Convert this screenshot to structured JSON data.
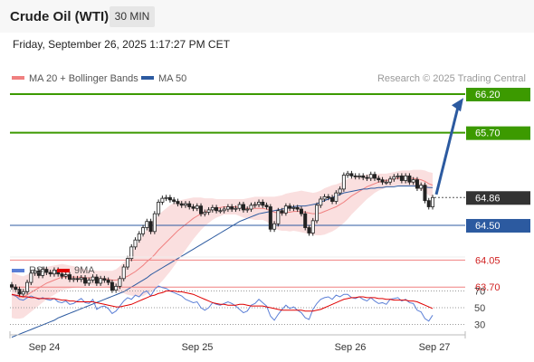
{
  "header": {
    "title": "Crude Oil (WTI)",
    "interval": "30 MIN"
  },
  "datetime": "Friday, September 26, 2025 1:17:27 PM CET",
  "legend": {
    "items": [
      {
        "label": "MA 20 + Bollinger Bands",
        "color": "#f08080"
      },
      {
        "label": "MA 50",
        "color": "#2c5aa0"
      }
    ],
    "credit": "Research © 2025 Trading Central"
  },
  "rsi_legend": {
    "items": [
      {
        "label": "RSI",
        "color": "#5b7fd6"
      },
      {
        "label": "9MA",
        "color": "#e00000"
      }
    ]
  },
  "colors": {
    "resistance": "#3c9a00",
    "support_blue": "#2c5aa0",
    "support_red": "#f08080",
    "current": "#333333",
    "arrow": "#2c5aa0"
  },
  "chart_data": [
    {
      "type": "candlestick",
      "x_labels": [
        "Sep 24",
        "Sep 25",
        "Sep 26",
        "Sep 27"
      ],
      "ylim": [
        63.0,
        66.5
      ],
      "levels": [
        {
          "label": "66.20",
          "value": 66.2,
          "kind": "resistance"
        },
        {
          "label": "65.70",
          "value": 65.7,
          "kind": "resistance"
        },
        {
          "label": "64.86",
          "value": 64.86,
          "kind": "current"
        },
        {
          "label": "64.50",
          "value": 64.5,
          "kind": "pivot"
        },
        {
          "label": "64.05",
          "value": 64.05,
          "kind": "support"
        },
        {
          "label": "63.70",
          "value": 63.7,
          "kind": "support"
        }
      ],
      "close": [
        63.7,
        63.67,
        63.61,
        63.64,
        63.76,
        63.88,
        63.91,
        63.85,
        63.93,
        63.89,
        63.87,
        63.92,
        63.87,
        63.84,
        63.86,
        63.8,
        63.81,
        63.8,
        63.82,
        63.75,
        63.79,
        63.83,
        63.75,
        63.81,
        63.79,
        63.76,
        63.66,
        63.71,
        63.81,
        63.96,
        64.07,
        64.22,
        64.31,
        64.39,
        64.47,
        64.55,
        64.42,
        64.65,
        64.8,
        64.85,
        64.86,
        64.83,
        64.81,
        64.78,
        64.76,
        64.78,
        64.74,
        64.72,
        64.75,
        64.65,
        64.67,
        64.7,
        64.73,
        64.69,
        64.69,
        64.71,
        64.74,
        64.71,
        64.72,
        64.77,
        64.7,
        64.71,
        64.76,
        64.77,
        64.8,
        64.76,
        64.74,
        64.45,
        64.52,
        64.69,
        64.66,
        64.75,
        64.72,
        64.73,
        64.71,
        64.65,
        64.47,
        64.4,
        64.56,
        64.76,
        64.84,
        64.87,
        64.86,
        64.81,
        64.92,
        64.97,
        65.15,
        65.17,
        65.14,
        65.13,
        65.14,
        65.12,
        65.11,
        65.16,
        65.11,
        65.09,
        65.06,
        65.06,
        65.1,
        65.13,
        65.14,
        65.08,
        65.14,
        65.06,
        65.09,
        64.98,
        65.02,
        64.82,
        64.74,
        64.86
      ],
      "ma20": [
        63.6,
        63.58,
        63.57,
        63.57,
        63.6,
        63.63,
        63.66,
        63.69,
        63.72,
        63.75,
        63.77,
        63.79,
        63.81,
        63.83,
        63.83,
        63.83,
        63.83,
        63.83,
        63.83,
        63.82,
        63.82,
        63.82,
        63.81,
        63.81,
        63.81,
        63.8,
        63.79,
        63.79,
        63.8,
        63.82,
        63.84,
        63.87,
        63.9,
        63.94,
        63.98,
        64.03,
        64.07,
        64.12,
        64.18,
        64.23,
        64.28,
        64.33,
        64.38,
        64.43,
        64.47,
        64.51,
        64.55,
        64.59,
        64.62,
        64.65,
        64.67,
        64.69,
        64.71,
        64.72,
        64.73,
        64.74,
        64.74,
        64.74,
        64.74,
        64.73,
        64.72,
        64.72,
        64.72,
        64.72,
        64.72,
        64.72,
        64.71,
        64.69,
        64.67,
        64.66,
        64.66,
        64.67,
        64.67,
        64.68,
        64.68,
        64.68,
        64.67,
        64.66,
        64.65,
        64.65,
        64.66,
        64.68,
        64.7,
        64.72,
        64.74,
        64.77,
        64.8,
        64.84,
        64.88,
        64.91,
        64.94,
        64.97,
        65.0,
        65.02,
        65.04,
        65.06,
        65.07,
        65.08,
        65.09,
        65.1,
        65.11,
        65.11,
        65.11,
        65.11,
        65.11,
        65.1,
        65.09,
        65.07,
        65.04,
        65.02
      ],
      "ma50": [
        63.05,
        63.07,
        63.09,
        63.11,
        63.13,
        63.15,
        63.17,
        63.19,
        63.21,
        63.23,
        63.25,
        63.27,
        63.3,
        63.32,
        63.34,
        63.36,
        63.38,
        63.4,
        63.42,
        63.44,
        63.46,
        63.48,
        63.5,
        63.52,
        63.54,
        63.56,
        63.58,
        63.6,
        63.62,
        63.64,
        63.67,
        63.7,
        63.73,
        63.76,
        63.79,
        63.82,
        63.86,
        63.89,
        63.92,
        63.95,
        63.98,
        64.01,
        64.04,
        64.07,
        64.1,
        64.13,
        64.16,
        64.19,
        64.22,
        64.25,
        64.28,
        64.31,
        64.34,
        64.37,
        64.4,
        64.43,
        64.46,
        64.49,
        64.52,
        64.55,
        64.57,
        64.59,
        64.61,
        64.63,
        64.65,
        64.66,
        64.67,
        64.68,
        64.69,
        64.7,
        64.71,
        64.72,
        64.73,
        64.74,
        64.75,
        64.75,
        64.75,
        64.76,
        64.77,
        64.78,
        64.8,
        64.82,
        64.84,
        64.86,
        64.88,
        64.9,
        64.92,
        64.93,
        64.94,
        64.95,
        64.96,
        64.97,
        64.97,
        64.98,
        64.98,
        64.99,
        64.99,
        65.0,
        65.0,
        65.0,
        65.01,
        65.01,
        65.01,
        65.01,
        65.01,
        65.01,
        65.0,
        65.0,
        64.99,
        64.99
      ],
      "bb_width": [
        0.3,
        0.29,
        0.28,
        0.27,
        0.26,
        0.25,
        0.24,
        0.23,
        0.22,
        0.21,
        0.2,
        0.19,
        0.18,
        0.17,
        0.16,
        0.15,
        0.14,
        0.13,
        0.12,
        0.11,
        0.1,
        0.1,
        0.1,
        0.1,
        0.1,
        0.11,
        0.12,
        0.14,
        0.17,
        0.2,
        0.24,
        0.28,
        0.32,
        0.36,
        0.4,
        0.42,
        0.44,
        0.45,
        0.45,
        0.45,
        0.44,
        0.43,
        0.41,
        0.39,
        0.36,
        0.33,
        0.3,
        0.27,
        0.24,
        0.21,
        0.18,
        0.16,
        0.14,
        0.12,
        0.11,
        0.1,
        0.1,
        0.1,
        0.1,
        0.11,
        0.12,
        0.13,
        0.14,
        0.15,
        0.15,
        0.15,
        0.16,
        0.18,
        0.2,
        0.22,
        0.23,
        0.24,
        0.25,
        0.25,
        0.26,
        0.27,
        0.27,
        0.27,
        0.27,
        0.28,
        0.29,
        0.3,
        0.3,
        0.3,
        0.29,
        0.28,
        0.27,
        0.26,
        0.24,
        0.22,
        0.2,
        0.18,
        0.16,
        0.14,
        0.12,
        0.11,
        0.1,
        0.09,
        0.09,
        0.09,
        0.09,
        0.1,
        0.1,
        0.1,
        0.11,
        0.12,
        0.13,
        0.14,
        0.15,
        0.16
      ]
    },
    {
      "type": "line",
      "name": "RSI",
      "y_ticks": [
        70,
        50,
        30
      ],
      "ylim": [
        20,
        85
      ],
      "rsi": [
        66,
        64,
        60,
        59,
        62,
        64,
        62,
        60,
        62,
        60,
        59,
        61,
        57,
        56,
        58,
        54,
        55,
        58,
        61,
        56,
        55,
        60,
        48,
        51,
        52,
        49,
        43,
        46,
        52,
        58,
        62,
        60,
        65,
        63,
        68,
        70,
        64,
        72,
        76,
        74,
        73,
        70,
        68,
        66,
        64,
        60,
        58,
        56,
        57,
        50,
        47,
        50,
        56,
        54,
        53,
        55,
        57,
        55,
        52,
        48,
        44,
        46,
        53,
        55,
        60,
        56,
        52,
        40,
        35,
        42,
        48,
        53,
        49,
        51,
        47,
        44,
        38,
        36,
        48,
        55,
        60,
        62,
        63,
        60,
        65,
        63,
        66,
        66,
        62,
        61,
        63,
        60,
        58,
        62,
        58,
        55,
        56,
        54,
        60,
        61,
        62,
        58,
        60,
        56,
        55,
        47,
        45,
        37,
        34,
        41
      ],
      "ma9": [
        66,
        65,
        64,
        63,
        63,
        62,
        62,
        61,
        61,
        61,
        61,
        61,
        60,
        59,
        59,
        58,
        58,
        57,
        57,
        57,
        57,
        57,
        56,
        55,
        54,
        53,
        52,
        51,
        51,
        52,
        53,
        54,
        56,
        58,
        60,
        62,
        64,
        65,
        67,
        68,
        70,
        70,
        70,
        69,
        69,
        68,
        67,
        66,
        64,
        62,
        60,
        58,
        56,
        55,
        54,
        54,
        53,
        53,
        53,
        54,
        54,
        53,
        52,
        52,
        52,
        52,
        51,
        50,
        49,
        48,
        47,
        47,
        47,
        47,
        47,
        47,
        46,
        46,
        46,
        47,
        48,
        50,
        52,
        54,
        56,
        58,
        60,
        61,
        62,
        62,
        63,
        63,
        62,
        62,
        62,
        61,
        61,
        60,
        60,
        59,
        59,
        59,
        59,
        58,
        58,
        57,
        55,
        53,
        51,
        49
      ]
    }
  ]
}
